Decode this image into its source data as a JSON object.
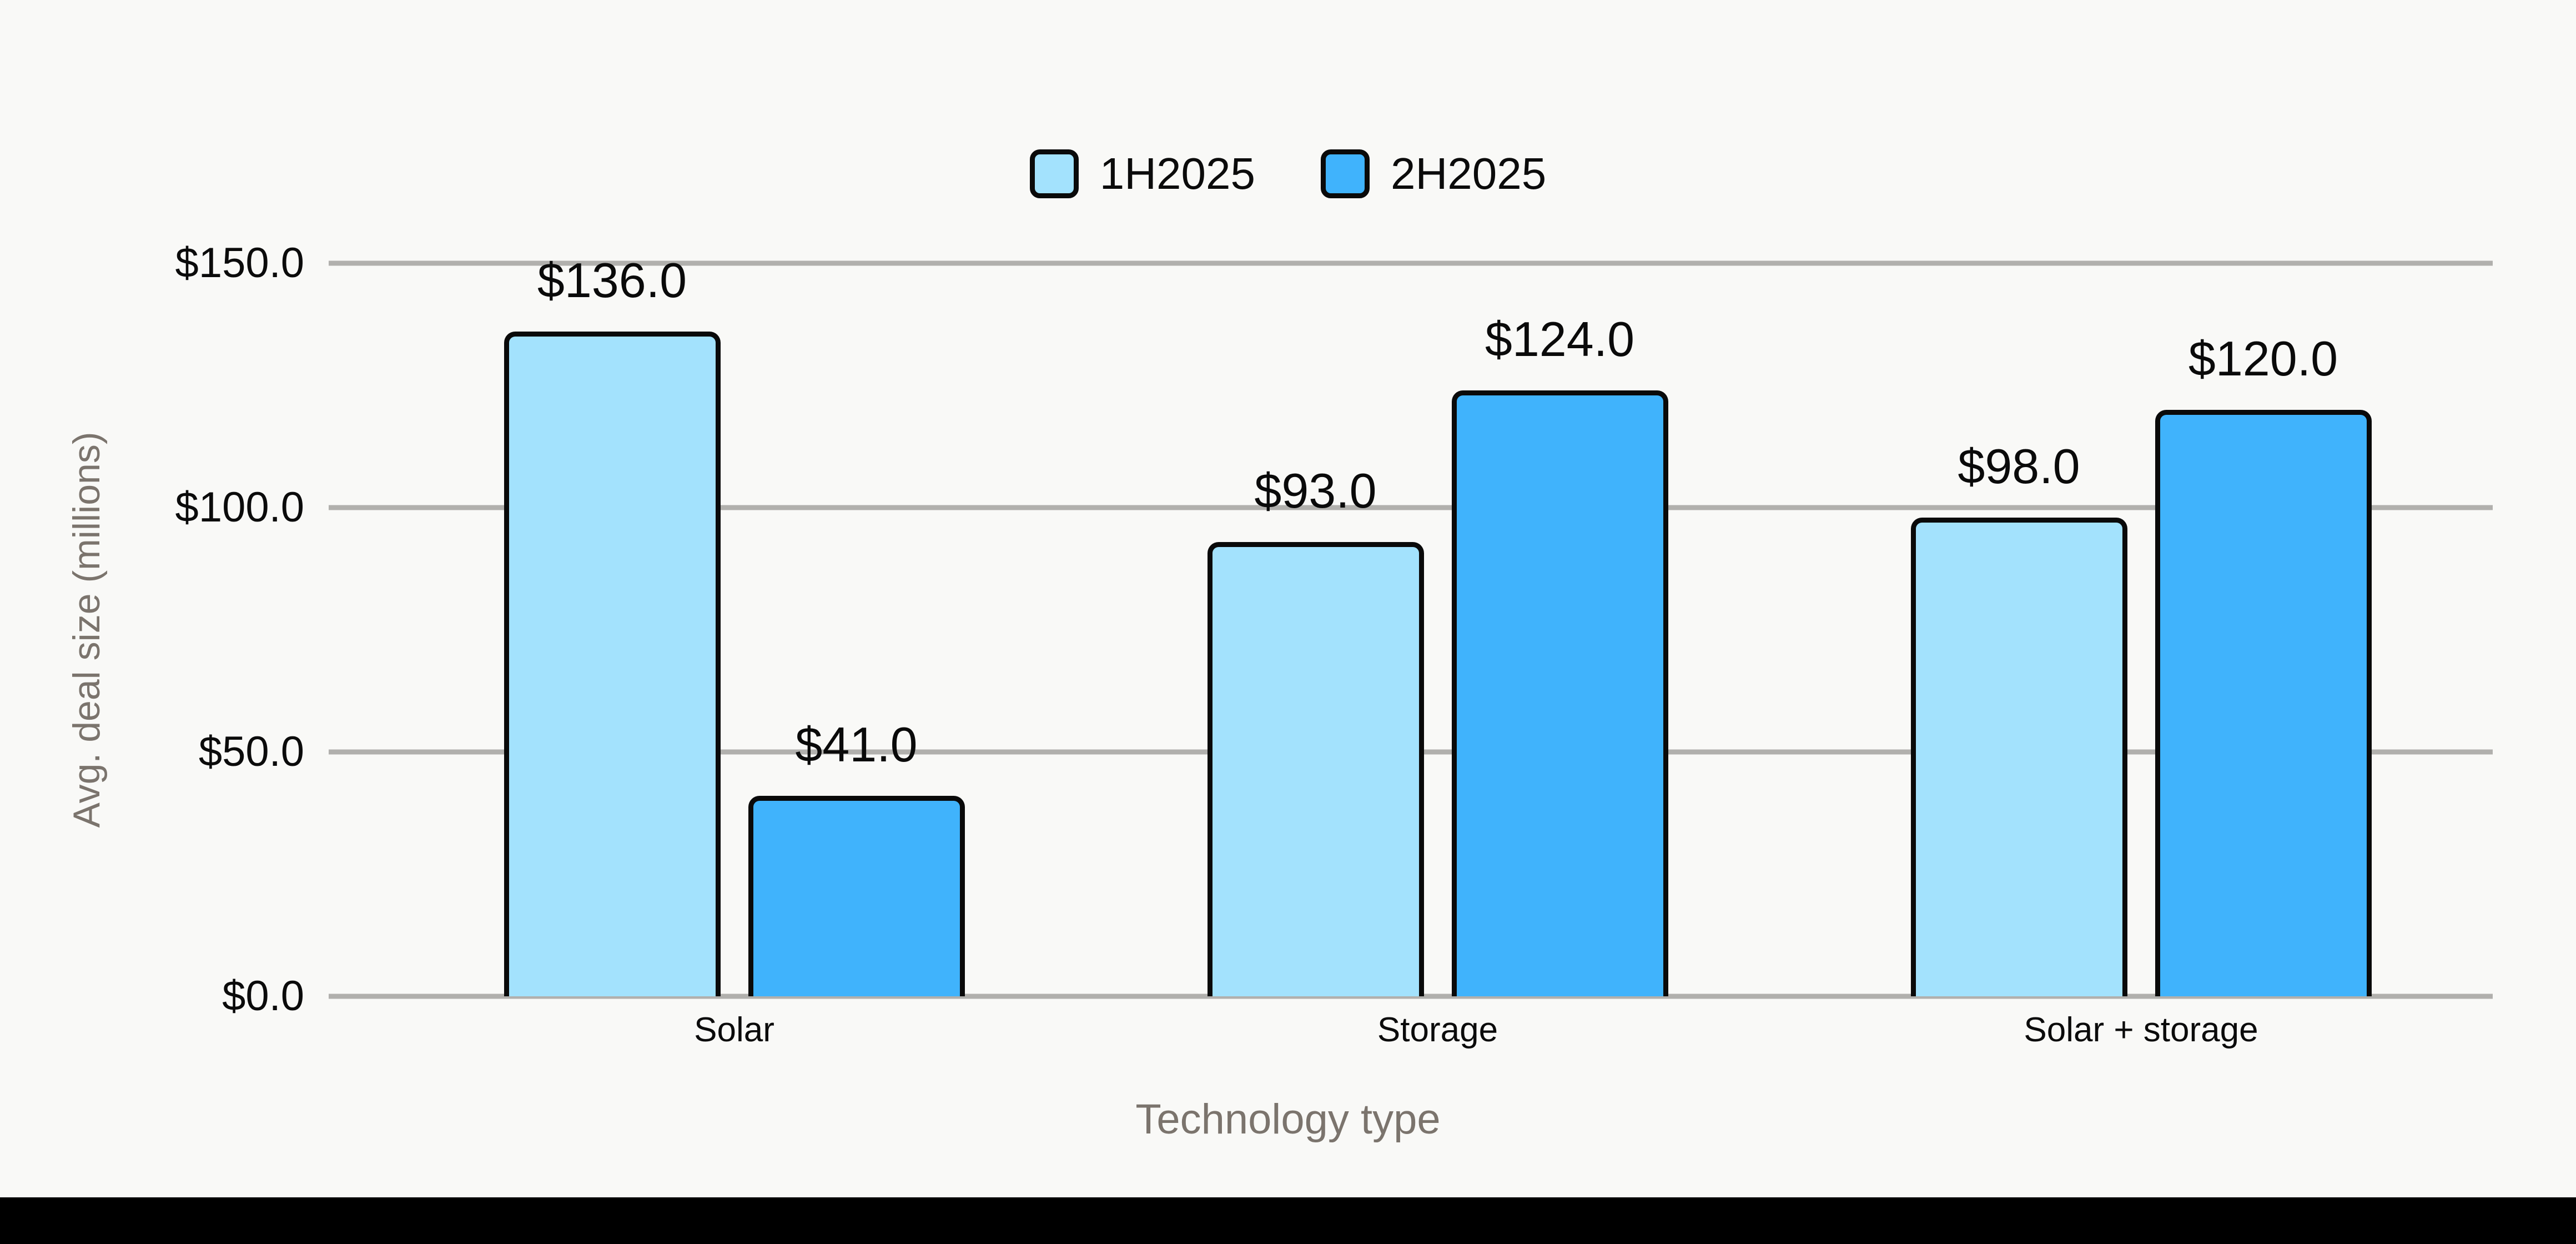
{
  "page": {
    "background": "#f9f9f7",
    "footer_bar_color": "#000000"
  },
  "chart_data": {
    "type": "bar",
    "title": "",
    "xlabel": "Technology type",
    "ylabel": "Avg. deal size (millions)",
    "categories": [
      "Solar",
      "Storage",
      "Solar + storage"
    ],
    "series": [
      {
        "name": "1H2025",
        "color": "#a3e2fd",
        "values": [
          136.0,
          93.0,
          98.0
        ],
        "labels": [
          "$136.0",
          "$93.0",
          "$98.0"
        ]
      },
      {
        "name": "2H2025",
        "color": "#40b3fc",
        "values": [
          41.0,
          124.0,
          120.0
        ],
        "labels": [
          "$41.0",
          "$124.0",
          "$120.0"
        ]
      }
    ],
    "ylim": [
      0,
      150
    ],
    "yticks": [
      {
        "value": 0,
        "label": "$0.0"
      },
      {
        "value": 50,
        "label": "$50.0"
      },
      {
        "value": 100,
        "label": "$100.0"
      },
      {
        "value": 150,
        "label": "$150.0"
      }
    ],
    "grid": true,
    "gridline_color": "#b1b0ad",
    "bar_border_color": "#0a0a0a",
    "legend_position": "top-center"
  }
}
